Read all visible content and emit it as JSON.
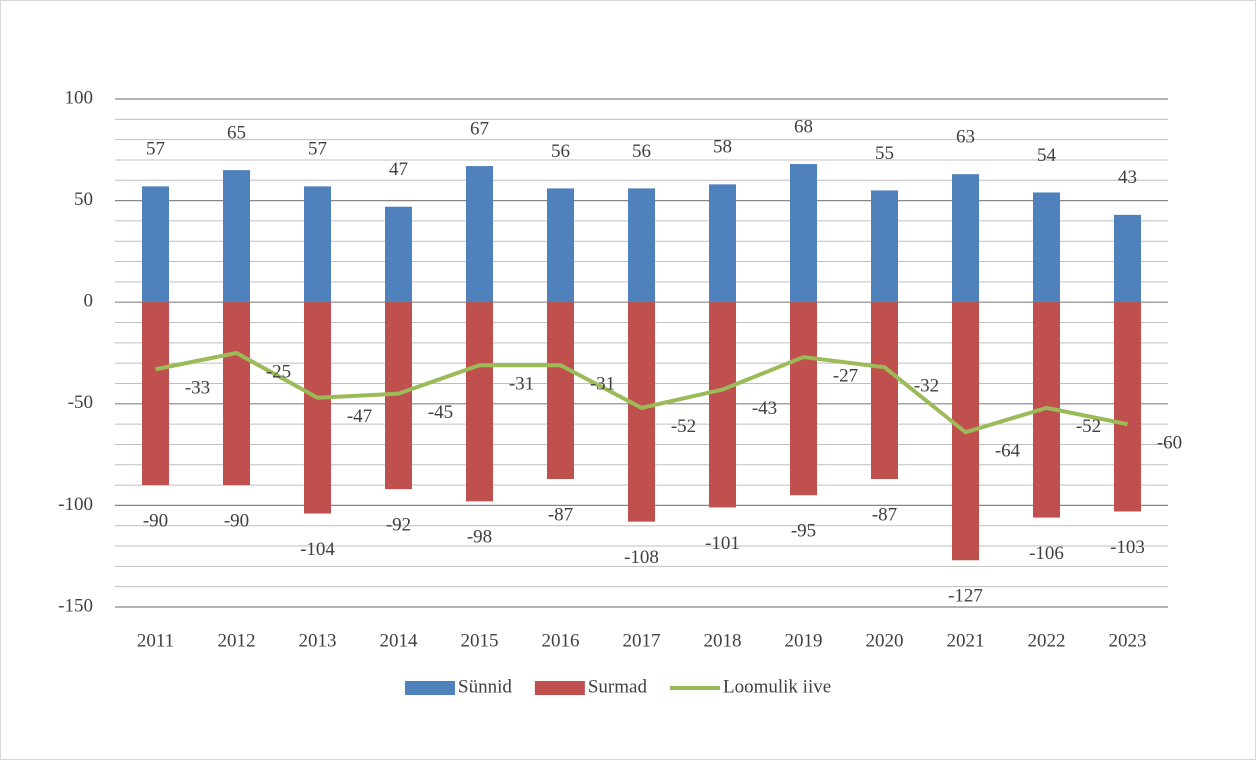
{
  "chart_data": {
    "type": "bar",
    "categories": [
      "2011",
      "2012",
      "2013",
      "2014",
      "2015",
      "2016",
      "2017",
      "2018",
      "2019",
      "2020",
      "2021",
      "2022",
      "2023"
    ],
    "series": [
      {
        "name": "Sünnid",
        "type": "bar",
        "color": "#4f81bd",
        "values": [
          57,
          65,
          57,
          47,
          67,
          56,
          56,
          58,
          68,
          55,
          63,
          54,
          43
        ]
      },
      {
        "name": "Surmad",
        "type": "bar",
        "color": "#c0504d",
        "values": [
          -90,
          -90,
          -104,
          -92,
          -98,
          -87,
          -108,
          -101,
          -95,
          -87,
          -127,
          -106,
          -103
        ]
      },
      {
        "name": "Loomulik iive",
        "type": "line",
        "color": "#9bbb59",
        "values": [
          -33,
          -25,
          -47,
          -45,
          -31,
          -31,
          -52,
          -43,
          -27,
          -32,
          -64,
          -52,
          -60
        ]
      }
    ],
    "ylim": [
      -150,
      100
    ],
    "yticks": [
      -150,
      -100,
      -50,
      0,
      50,
      100
    ],
    "minor_yticks": [
      -140,
      -130,
      -120,
      -110,
      -90,
      -80,
      -70,
      -60,
      -40,
      -30,
      -20,
      -10,
      10,
      20,
      30,
      40,
      60,
      70,
      80,
      90
    ],
    "grid": true,
    "legend": "bottom"
  }
}
